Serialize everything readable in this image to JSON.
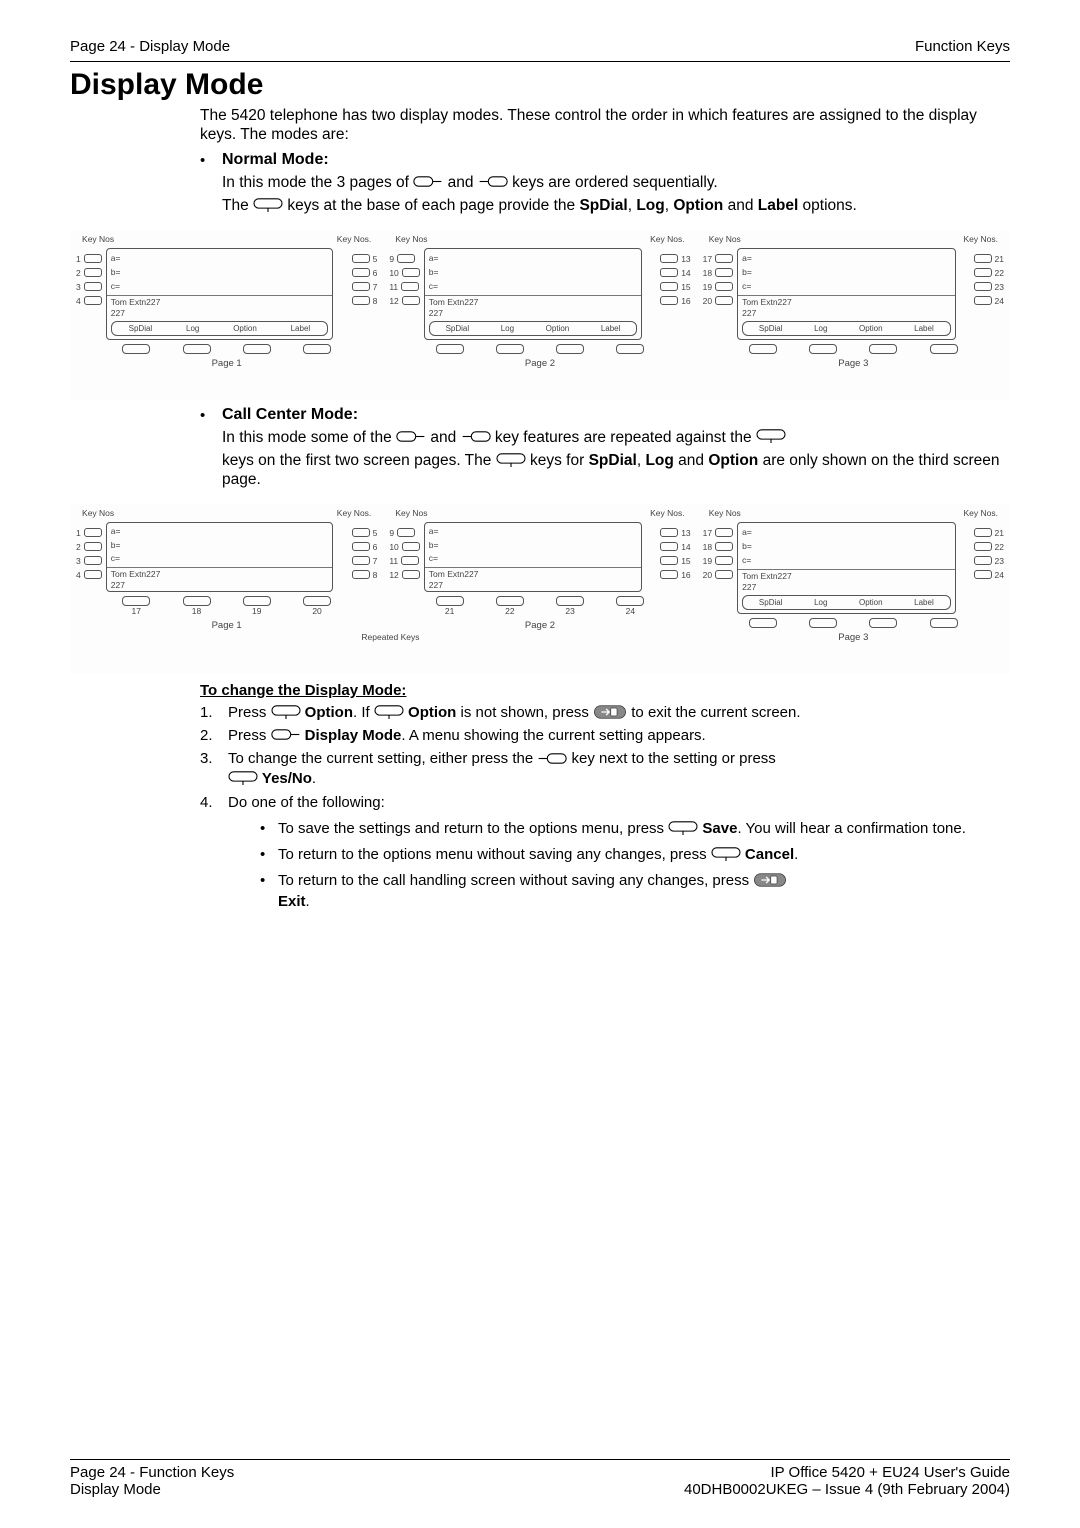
{
  "header": {
    "left": "Page 24 - Display Mode",
    "right": "Function Keys"
  },
  "title": "Display Mode",
  "intro": "The 5420 telephone has two display modes. These control the order in which features are assigned to the display keys. The modes are:",
  "normal_mode": {
    "title": "Normal Mode:",
    "line1a": "In this mode the 3 pages of ",
    "line1b": " and ",
    "line1c": " keys are ordered sequentially.",
    "line2a": "The ",
    "line2b": " keys at the base of each page provide the ",
    "sp_dial": "SpDial",
    "comma1": ", ",
    "log": "Log",
    "comma2": ", ",
    "option": "Option",
    "line2c": " and ",
    "label": "Label",
    "line2d": " options."
  },
  "call_center_mode": {
    "title": "Call Center Mode:",
    "line1a": "In this mode some of the ",
    "line1b": " and ",
    "line1c": " key features are repeated against the ",
    "line2a": "keys on the first two screen pages. The ",
    "line2b": " keys for ",
    "sp_dial": "SpDial",
    "comma1": ", ",
    "log": "Log",
    "line2c": " and ",
    "option": "Option",
    "line2d": " are only shown on the third screen page."
  },
  "procedure": {
    "title": "To change the Display Mode:",
    "step1a": "Press ",
    "step1_option1": " Option",
    "step1b": ". If ",
    "step1_option2": " Option",
    "step1c": " is not shown, press ",
    "step1d": " to exit the current screen.",
    "step2a": "Press ",
    "step2_dm": " Display Mode",
    "step2b": ". A menu showing the current setting appears.",
    "step3a": "To change the current setting, either press the ",
    "step3b": " key next to the setting or press ",
    "step3_yesno": " Yes/No",
    "step3c": ".",
    "step4": "Do one of the following:",
    "step4a1": "To save the settings and return to the options menu, press ",
    "step4a_save": " Save",
    "step4a2": ". You will hear a confirmation tone.",
    "step4b1": "To return to the options menu without saving any changes, press ",
    "step4b_cancel": " Cancel",
    "step4b2": ".",
    "step4c1": "To return to the call handling screen without saving any changes, press ",
    "step4c_exit": "Exit",
    "step4c2": "."
  },
  "diagram1": {
    "labels": {
      "keynos": "Key Nos",
      "keynos_dot": "Key Nos.",
      "page1": "Page 1",
      "page2": "Page 2",
      "page3": "Page 3"
    },
    "left_keys": [
      "1",
      "2",
      "3",
      "4"
    ],
    "screen_lines": {
      "a": "a=",
      "b": "b=",
      "c": "c="
    },
    "status_name": "Tom Extn227",
    "status_ext": "227",
    "softkeys": [
      "SpDial",
      "Log",
      "Option",
      "Label"
    ],
    "mid_left_keys": [
      "5",
      "6",
      "7",
      "8"
    ],
    "mid_right_keys_l": [
      "9",
      "10",
      "11",
      "12"
    ],
    "mid_right_keys_r": [
      "13",
      "14",
      "15",
      "16"
    ],
    "right_keys_l": [
      "17",
      "18",
      "19",
      "20"
    ],
    "right_keys_r": [
      "21",
      "22",
      "23",
      "24"
    ]
  },
  "diagram2": {
    "labels": {
      "keynos": "Key Nos",
      "keynos_dot": "Key Nos.",
      "page1": "Page 1",
      "page2": "Page 2",
      "page3": "Page 3",
      "repeated": "Repeated Keys"
    },
    "left_keys": [
      "1",
      "2",
      "3",
      "4"
    ],
    "screen_lines": {
      "a": "a=",
      "b": "b=",
      "c": "c="
    },
    "status_name": "Tom Extn227",
    "status_ext": "227",
    "softkeys_p3": [
      "SpDial",
      "Log",
      "Option",
      "Label"
    ],
    "mid_left_keys": [
      "5",
      "6",
      "7",
      "8"
    ],
    "mid_right_keys_l": [
      "9",
      "10",
      "11",
      "12"
    ],
    "mid_right_keys_r": [
      "13",
      "14",
      "15",
      "16"
    ],
    "right_keys_l": [
      "17",
      "18",
      "19",
      "20"
    ],
    "right_keys_r": [
      "21",
      "22",
      "23",
      "24"
    ],
    "repeat_nums_p1": [
      "17",
      "18",
      "19",
      "20"
    ],
    "repeat_nums_p2": [
      "21",
      "22",
      "23",
      "24"
    ]
  },
  "footer": {
    "left1": "Page 24 - Function Keys",
    "left2": "Display Mode",
    "right1": "IP Office 5420 + EU24 User's Guide",
    "right2": "40DHB0002UKEG – Issue 4 (9th February 2004)"
  },
  "icons": {
    "key_right_color": "#000000",
    "key_left_color": "#000000",
    "key_bottom_color": "#000000",
    "exit_fill": "#7a7a7a"
  }
}
